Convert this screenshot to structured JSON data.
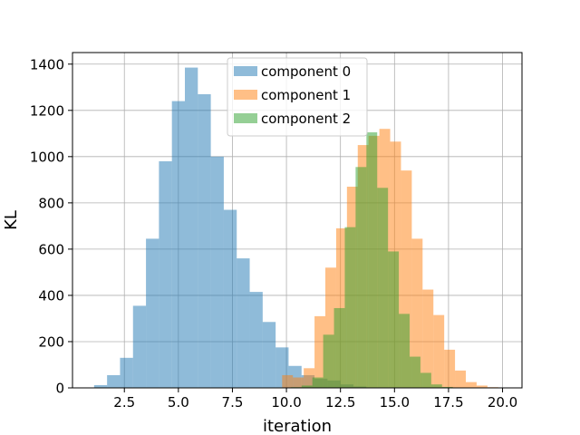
{
  "chart_data": {
    "type": "histogram",
    "xlabel": "iteration",
    "ylabel": "KL",
    "xlim": [
      0.1,
      20.9
    ],
    "ylim": [
      0,
      1450
    ],
    "xticks": [
      2.5,
      5.0,
      7.5,
      10.0,
      12.5,
      15.0,
      17.5,
      20.0
    ],
    "xtick_labels": [
      "2.5",
      "5.0",
      "7.5",
      "10.0",
      "12.5",
      "15.0",
      "17.5",
      "20.0"
    ],
    "yticks": [
      0,
      200,
      400,
      600,
      800,
      1000,
      1200,
      1400
    ],
    "ytick_labels": [
      "0",
      "200",
      "400",
      "600",
      "800",
      "1000",
      "1200",
      "1400"
    ],
    "grid": true,
    "legend_position": "top-center",
    "series": [
      {
        "name": "component 0",
        "color": "#1f77b4",
        "opacity": 0.5,
        "bin_start": 1.1,
        "bin_width": 0.6,
        "values": [
          12,
          55,
          130,
          355,
          645,
          980,
          1240,
          1385,
          1270,
          1000,
          770,
          560,
          415,
          285,
          175,
          95,
          55,
          40,
          32,
          15,
          6
        ]
      },
      {
        "name": "component 1",
        "color": "#ff7f0e",
        "opacity": 0.5,
        "bin_start": 9.8,
        "bin_width": 0.5,
        "values": [
          55,
          45,
          85,
          310,
          520,
          690,
          870,
          1050,
          1090,
          1120,
          1065,
          940,
          645,
          425,
          315,
          165,
          75,
          25,
          10,
          3
        ]
      },
      {
        "name": "component 2",
        "color": "#2ca02c",
        "opacity": 0.5,
        "bin_start": 10.2,
        "bin_width": 0.5,
        "values": [
          3,
          10,
          45,
          230,
          345,
          695,
          955,
          1105,
          865,
          590,
          320,
          135,
          65,
          15,
          4
        ]
      }
    ]
  }
}
